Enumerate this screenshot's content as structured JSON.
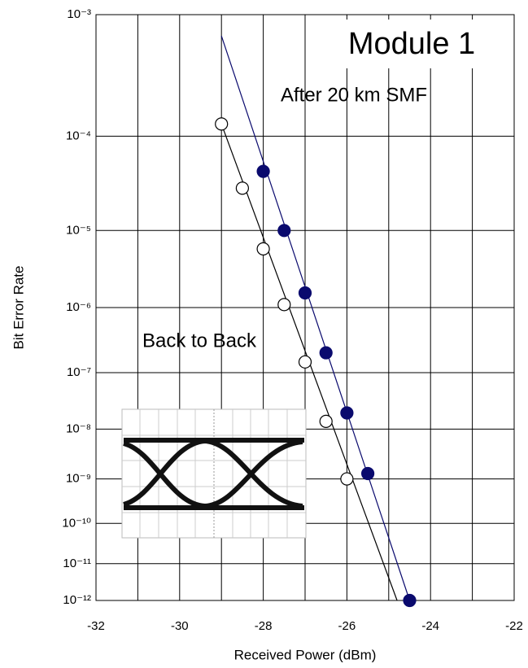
{
  "chart_data": {
    "type": "scatter",
    "title": "Module 1",
    "x_label": "Received Power (dBm)",
    "y_label": "Bit Error Rate",
    "yscale": "log-log",
    "xlim": [
      -32,
      -22
    ],
    "xticks": [
      -32,
      -30,
      -28,
      -26,
      -24,
      -22
    ],
    "xgrid": [
      -31,
      -29,
      -27,
      -25,
      -23
    ],
    "ylim": [
      0.001,
      1e-12
    ],
    "yticks": [
      {
        "value": 0.001,
        "label": "10⁻³"
      },
      {
        "value": 0.0001,
        "label": "10⁻⁴"
      },
      {
        "value": 1e-05,
        "label": "10⁻⁵"
      },
      {
        "value": 1e-06,
        "label": "10⁻⁶"
      },
      {
        "value": 1e-07,
        "label": "10⁻⁷"
      },
      {
        "value": 1e-08,
        "label": "10⁻⁸"
      },
      {
        "value": 1e-09,
        "label": "10⁻⁹"
      },
      {
        "value": 1e-10,
        "label": "10⁻¹⁰"
      },
      {
        "value": 1e-11,
        "label": "10⁻¹¹"
      },
      {
        "value": 1e-12,
        "label": "10⁻¹²"
      }
    ],
    "grid": true,
    "series": [
      {
        "name": "Back to Back",
        "color": "#000000",
        "filled": false,
        "x": [
          -29,
          -28.5,
          -28,
          -27.5,
          -27,
          -26.5,
          -26
        ],
        "values": [
          0.00013,
          3e-05,
          6e-06,
          1.1e-06,
          1.5e-07,
          1.4e-08,
          1e-09
        ],
        "fit_x": [
          -29,
          -24.8
        ],
        "fit_values": [
          0.00013,
          1e-12
        ]
      },
      {
        "name": "After 20 km SMF",
        "color": "#0a0a6e",
        "filled": true,
        "x": [
          -28,
          -27.5,
          -27,
          -26.5,
          -26,
          -25.5,
          -24.5
        ],
        "values": [
          4.5e-05,
          1e-05,
          1.6e-06,
          2.1e-07,
          2e-08,
          1.3e-09,
          1e-12
        ],
        "fit_x": [
          -29,
          -24.5
        ],
        "fit_values": [
          0.0007,
          1e-12
        ]
      }
    ]
  }
}
